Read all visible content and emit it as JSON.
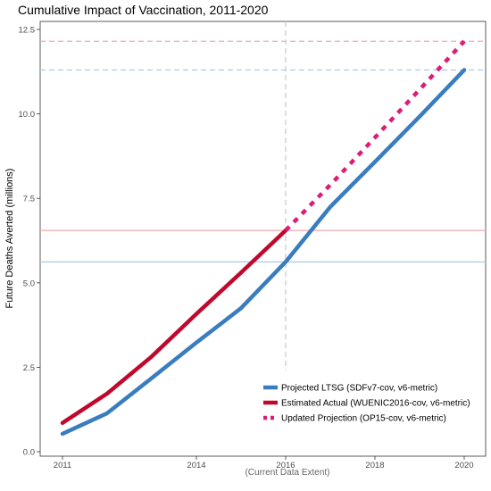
{
  "chart_data": {
    "type": "line",
    "title": "Cumulative Impact of Vaccination, 2011-2020",
    "ylabel": "Future Deaths Averted (millions)",
    "xlabel": "",
    "x_ticks": [
      2011,
      2014,
      2016,
      2018,
      2020
    ],
    "y_ticks": [
      "0.0",
      "2.5",
      "5.0",
      "7.5",
      "10.0",
      "12.5"
    ],
    "xlim": [
      2011,
      2020
    ],
    "ylim": [
      0,
      12.5
    ],
    "grid": false,
    "legend_position": "bottom-right",
    "annotation": "(Current Data Extent)",
    "current_data_year": 2016,
    "series": [
      {
        "name": "Projected LTSG (SDFv7-cov, v6-metric)",
        "color": "#3a7dbf",
        "style": "solid",
        "x": [
          2011,
          2012,
          2013,
          2014,
          2015,
          2016,
          2017,
          2018,
          2019,
          2020
        ],
        "y": [
          0.53,
          1.14,
          2.18,
          3.23,
          4.25,
          5.62,
          7.25,
          8.58,
          9.92,
          11.3
        ]
      },
      {
        "name": "Estimated Actual (WUENIC2016-cov, v6-metric)",
        "color": "#c0082c",
        "style": "solid",
        "x": [
          2011,
          2012,
          2013,
          2014,
          2015,
          2016
        ],
        "y": [
          0.85,
          1.72,
          2.82,
          4.08,
          5.3,
          6.55
        ]
      },
      {
        "name": "Updated Projection (OP15-cov, v6-metric)",
        "color": "#dd1c77",
        "style": "dotted",
        "x": [
          2016,
          2017,
          2018,
          2019,
          2020
        ],
        "y": [
          6.55,
          7.9,
          9.3,
          10.72,
          12.15
        ]
      }
    ],
    "reference_lines": [
      {
        "axis": "y",
        "value": 12.15,
        "color": "#f4a9ad",
        "style": "dashed"
      },
      {
        "axis": "y",
        "value": 11.3,
        "color": "#a9cbec",
        "style": "dashed"
      },
      {
        "axis": "y",
        "value": 6.55,
        "color": "#f4a9ad",
        "style": "solid"
      },
      {
        "axis": "y",
        "value": 5.62,
        "color": "#a9cbec",
        "style": "solid"
      },
      {
        "axis": "x",
        "value": 2016,
        "color": "#cccccc",
        "style": "dashed"
      }
    ]
  }
}
